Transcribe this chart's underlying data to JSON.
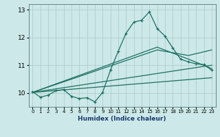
{
  "title": "",
  "xlabel": "Humidex (Indice chaleur)",
  "ylabel": "",
  "bg_color": "#cce8e8",
  "grid_color": "#b0cccc",
  "line_color": "#1a6e60",
  "xlim": [
    -0.5,
    23.5
  ],
  "ylim": [
    9.5,
    13.2
  ],
  "yticks": [
    10,
    11,
    12,
    13
  ],
  "xticks": [
    0,
    1,
    2,
    3,
    4,
    5,
    6,
    7,
    8,
    9,
    10,
    11,
    12,
    13,
    14,
    15,
    16,
    17,
    18,
    19,
    20,
    21,
    22,
    23
  ],
  "line1_x": [
    0,
    1,
    2,
    3,
    4,
    5,
    6,
    7,
    8,
    9,
    10,
    11,
    12,
    13,
    14,
    15,
    16,
    17,
    18,
    19,
    20,
    21,
    22,
    23
  ],
  "line1_y": [
    10.05,
    9.85,
    9.92,
    10.08,
    10.12,
    9.88,
    9.8,
    9.83,
    9.68,
    10.02,
    10.82,
    11.5,
    12.15,
    12.55,
    12.62,
    12.92,
    12.32,
    12.05,
    11.62,
    11.22,
    11.12,
    11.05,
    11.02,
    10.82
  ],
  "line2_x": [
    0,
    23
  ],
  "line2_y": [
    10.02,
    10.55
  ],
  "line3_x": [
    0,
    23
  ],
  "line3_y": [
    10.02,
    11.0
  ],
  "line4_x": [
    0,
    16,
    20,
    23
  ],
  "line4_y": [
    10.02,
    11.65,
    11.22,
    10.88
  ],
  "line5_x": [
    0,
    16,
    20,
    23
  ],
  "line5_y": [
    10.02,
    11.55,
    11.35,
    11.55
  ]
}
